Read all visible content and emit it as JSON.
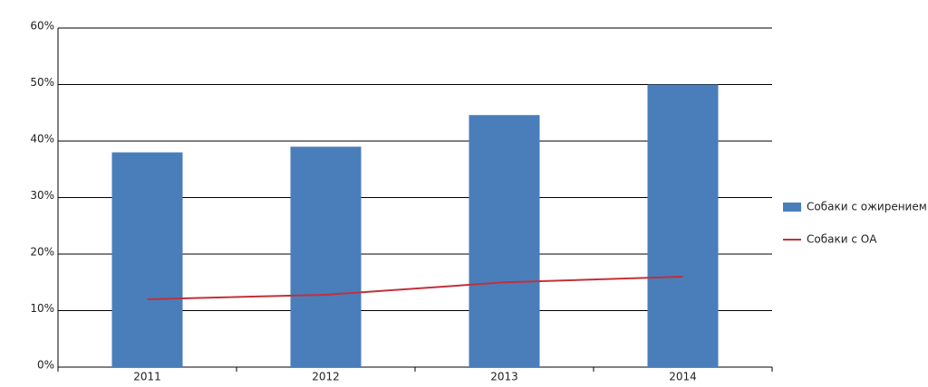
{
  "chart_data": {
    "type": "bar",
    "categories": [
      "2011",
      "2012",
      "2013",
      "2014"
    ],
    "series": [
      {
        "name": "Собаки с ожирением",
        "type": "bar",
        "color": "#4a7ebb",
        "values": [
          38,
          39,
          44.6,
          50
        ]
      },
      {
        "name": "Собаки с ОА",
        "type": "line",
        "color": "#c0313a",
        "values": [
          12,
          12.8,
          15,
          16
        ]
      }
    ],
    "ylim": [
      0,
      60
    ],
    "yticks": [
      {
        "value": 0,
        "label": "0%"
      },
      {
        "value": 10,
        "label": "10%"
      },
      {
        "value": 20,
        "label": "20%"
      },
      {
        "value": 30,
        "label": "30%"
      },
      {
        "value": 40,
        "label": "40%"
      },
      {
        "value": 50,
        "label": "50%"
      },
      {
        "value": 60,
        "label": "60%"
      }
    ],
    "grid": true,
    "legend": "right"
  }
}
